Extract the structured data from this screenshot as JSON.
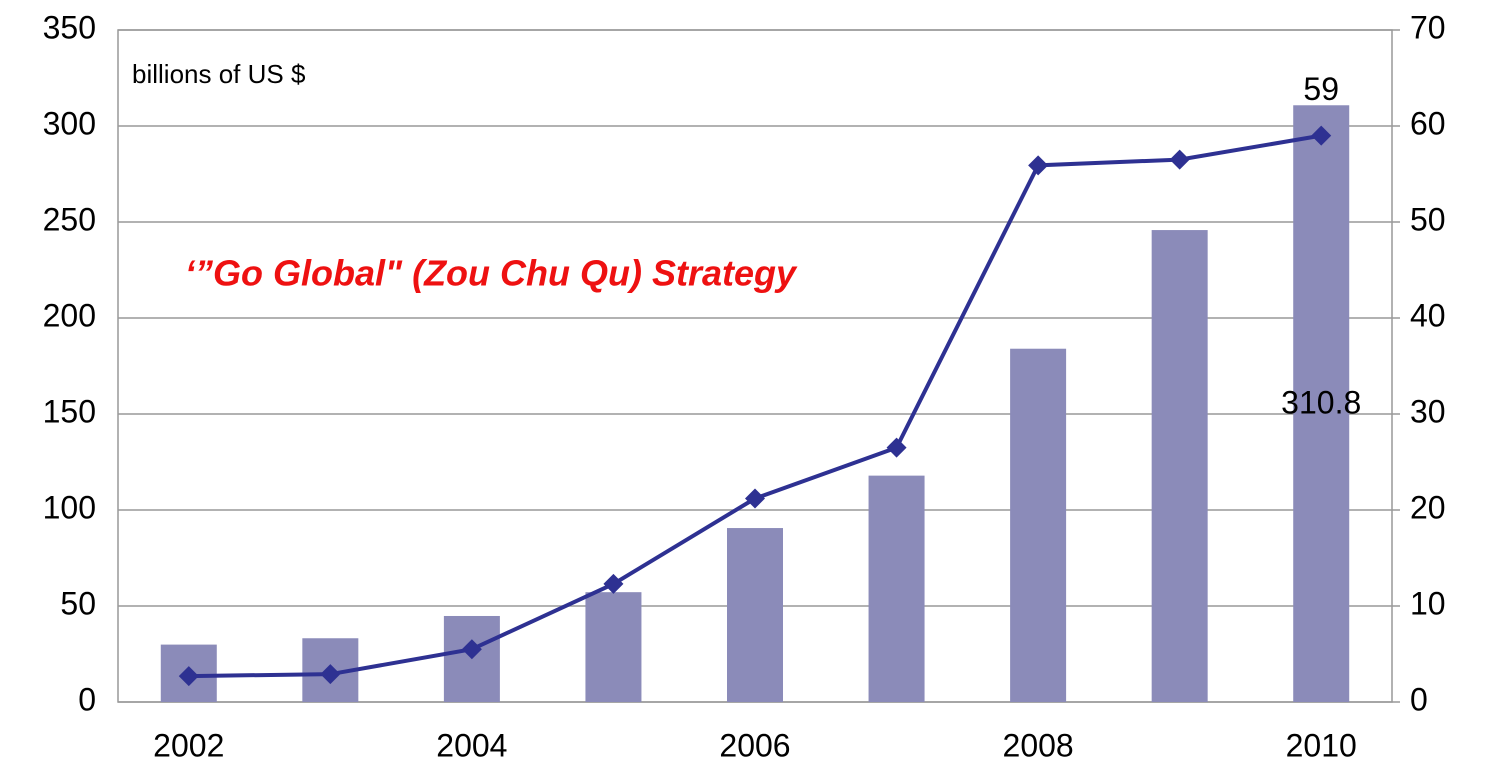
{
  "chart_data": {
    "type": "bar_line",
    "unit_label": "billions of US $",
    "annotation": "‘”Go Global\" (Zou Chu Qu) Strategy",
    "categories": [
      "2002",
      null,
      "2004",
      null,
      "2006",
      null,
      "2008",
      null,
      "2010"
    ],
    "series": [
      {
        "type": "bar",
        "color": "#8b8bb9",
        "axis": "y",
        "values": [
          29.9,
          33.2,
          44.8,
          57.2,
          90.6,
          117.9,
          184.0,
          245.8,
          310.8
        ],
        "value_labels": [
          null,
          null,
          null,
          null,
          null,
          null,
          null,
          null,
          "310.8"
        ]
      },
      {
        "type": "line",
        "color": "#2e3192",
        "axis": "y2",
        "values": [
          2.7,
          2.9,
          5.5,
          12.3,
          21.2,
          26.5,
          55.9,
          56.5,
          59
        ],
        "value_labels": [
          null,
          null,
          null,
          null,
          null,
          null,
          null,
          null,
          "59"
        ]
      }
    ],
    "ylim": [
      0,
      350
    ],
    "yticks": [
      0,
      50,
      100,
      150,
      200,
      250,
      300,
      350
    ],
    "y2lim": [
      0,
      70
    ],
    "y2ticks": [
      0,
      10,
      20,
      30,
      40,
      50,
      60,
      70
    ],
    "grid": true
  }
}
